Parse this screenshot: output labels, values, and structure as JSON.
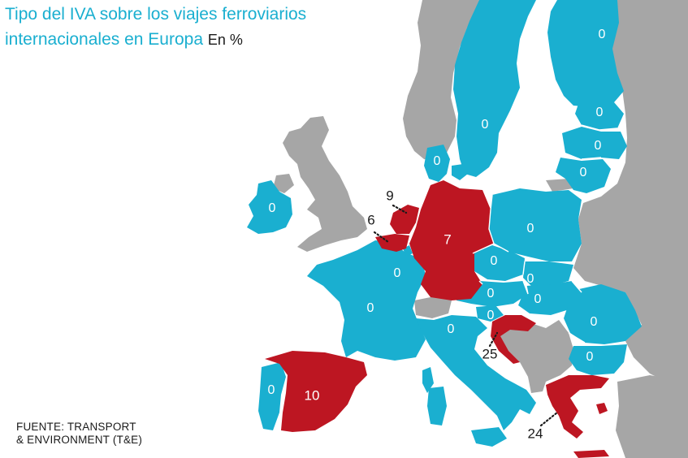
{
  "title": {
    "line1": "Tipo del IVA sobre los viajes ferroviarios",
    "line2": "internacionales en Europa",
    "unit": "En %"
  },
  "source": {
    "line1": "FUENTE: TRANSPORT",
    "line2": "& ENVIRONMENT (T&E)"
  },
  "colors": {
    "zero_rate": "#1aafd0",
    "vat_rate": "#bd1622",
    "no_data": "#a6a6a6",
    "sea": "#ffffff"
  },
  "countries": [
    {
      "name": "Finland",
      "value": "0",
      "category": "zero"
    },
    {
      "name": "Sweden",
      "value": "0",
      "category": "zero"
    },
    {
      "name": "Estonia",
      "value": "0",
      "category": "zero"
    },
    {
      "name": "Latvia",
      "value": "0",
      "category": "zero"
    },
    {
      "name": "Lithuania",
      "value": "0",
      "category": "zero"
    },
    {
      "name": "Denmark",
      "value": "0",
      "category": "zero"
    },
    {
      "name": "Ireland",
      "value": "0",
      "category": "zero"
    },
    {
      "name": "Netherlands",
      "value": "9",
      "category": "vat"
    },
    {
      "name": "Belgium",
      "value": "6",
      "category": "vat"
    },
    {
      "name": "Germany",
      "value": "7",
      "category": "vat"
    },
    {
      "name": "Poland",
      "value": "0",
      "category": "zero"
    },
    {
      "name": "Czechia",
      "value": "0",
      "category": "zero"
    },
    {
      "name": "Slovakia",
      "value": "0",
      "category": "zero"
    },
    {
      "name": "Austria",
      "value": "0",
      "category": "zero"
    },
    {
      "name": "Hungary",
      "value": "0",
      "category": "zero"
    },
    {
      "name": "Slovenia",
      "value": "0",
      "category": "zero"
    },
    {
      "name": "France",
      "value": "0",
      "category": "zero"
    },
    {
      "name": "Luxembourg",
      "value": "0",
      "category": "zero"
    },
    {
      "name": "Italy",
      "value": "0",
      "category": "zero"
    },
    {
      "name": "Romania",
      "value": "0",
      "category": "zero"
    },
    {
      "name": "Bulgaria",
      "value": "0",
      "category": "zero"
    },
    {
      "name": "Croatia",
      "value": "25",
      "category": "vat"
    },
    {
      "name": "Portugal",
      "value": "0",
      "category": "zero"
    },
    {
      "name": "Spain",
      "value": "10",
      "category": "vat"
    },
    {
      "name": "Greece",
      "value": "24",
      "category": "vat"
    }
  ]
}
